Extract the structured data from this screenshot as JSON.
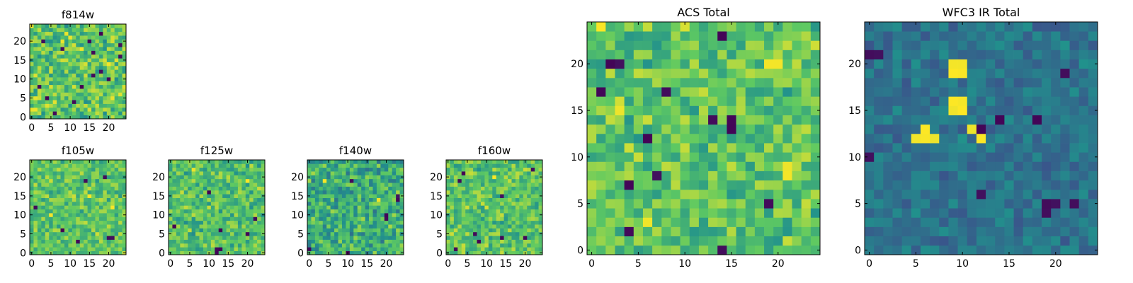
{
  "figure": {
    "background": "#ffffff"
  },
  "colormap": {
    "name": "viridis",
    "stops": [
      "#440154",
      "#3b528b",
      "#21918c",
      "#5ec962",
      "#fde725"
    ]
  },
  "chart_data": [
    {
      "id": "f814w",
      "type": "heatmap",
      "title": "f814w",
      "xticks": [
        "0",
        "5",
        "10",
        "15",
        "20"
      ],
      "yticks": [
        "0",
        "5",
        "10",
        "15",
        "20"
      ],
      "xlim": [
        0,
        24
      ],
      "ylim": [
        0,
        24
      ],
      "grid_size": 25,
      "intensity_range": [
        0,
        1
      ],
      "mean": 0.72,
      "spread": 0.2,
      "dark_pixels": [
        [
          3,
          20
        ],
        [
          18,
          22
        ],
        [
          15,
          20
        ],
        [
          23,
          19
        ],
        [
          8,
          18
        ],
        [
          16,
          17
        ],
        [
          18,
          12
        ],
        [
          16,
          11
        ],
        [
          20,
          10
        ],
        [
          2,
          8
        ],
        [
          4,
          5
        ],
        [
          11,
          4
        ],
        [
          23,
          16
        ],
        [
          13,
          8
        ],
        [
          6,
          1
        ]
      ],
      "bright_pixels": [
        [
          10,
          21
        ],
        [
          20,
          14
        ],
        [
          13,
          18
        ],
        [
          1,
          2
        ]
      ]
    },
    {
      "id": "f105w",
      "type": "heatmap",
      "title": "f105w",
      "xticks": [
        "0",
        "5",
        "10",
        "15",
        "20"
      ],
      "yticks": [
        "0",
        "5",
        "10",
        "15",
        "20"
      ],
      "xlim": [
        0,
        24
      ],
      "ylim": [
        0,
        24
      ],
      "grid_size": 25,
      "intensity_range": [
        0,
        1
      ],
      "mean": 0.72,
      "spread": 0.16,
      "dark_pixels": [
        [
          14,
          19
        ],
        [
          19,
          20
        ],
        [
          20,
          4
        ],
        [
          21,
          4
        ],
        [
          8,
          6
        ],
        [
          12,
          3
        ],
        [
          1,
          12
        ]
      ],
      "bright_pixels": [
        [
          15,
          15
        ],
        [
          21,
          12
        ],
        [
          5,
          10
        ]
      ]
    },
    {
      "id": "f125w",
      "type": "heatmap",
      "title": "f125w",
      "xticks": [
        "0",
        "5",
        "10",
        "15",
        "20"
      ],
      "yticks": [
        "0",
        "5",
        "10",
        "15",
        "20"
      ],
      "xlim": [
        0,
        24
      ],
      "ylim": [
        0,
        24
      ],
      "grid_size": 25,
      "intensity_range": [
        0,
        1
      ],
      "mean": 0.7,
      "spread": 0.17,
      "dark_pixels": [
        [
          12,
          1
        ],
        [
          12,
          0
        ],
        [
          13,
          1
        ],
        [
          1,
          7
        ],
        [
          13,
          6
        ],
        [
          20,
          5
        ],
        [
          22,
          9
        ],
        [
          10,
          16
        ]
      ],
      "bright_pixels": [
        [
          20,
          19
        ],
        [
          6,
          22
        ]
      ]
    },
    {
      "id": "f140w",
      "type": "heatmap",
      "title": "f140w",
      "xticks": [
        "0",
        "5",
        "10",
        "15",
        "20"
      ],
      "yticks": [
        "0",
        "5",
        "10",
        "15",
        "20"
      ],
      "xlim": [
        0,
        24
      ],
      "ylim": [
        0,
        24
      ],
      "grid_size": 25,
      "intensity_range": [
        0,
        1
      ],
      "mean": 0.62,
      "spread": 0.2,
      "dark_pixels": [
        [
          23,
          14
        ],
        [
          23,
          15
        ],
        [
          20,
          9
        ],
        [
          20,
          10
        ],
        [
          10,
          0
        ],
        [
          0,
          1
        ],
        [
          11,
          19
        ]
      ],
      "bright_pixels": [
        [
          18,
          14
        ],
        [
          4,
          19
        ]
      ]
    },
    {
      "id": "f160w",
      "type": "heatmap",
      "title": "f160w",
      "xticks": [
        "0",
        "5",
        "10",
        "15",
        "20"
      ],
      "yticks": [
        "0",
        "5",
        "10",
        "15",
        "20"
      ],
      "xlim": [
        0,
        24
      ],
      "ylim": [
        0,
        24
      ],
      "grid_size": 25,
      "intensity_range": [
        0,
        1
      ],
      "mean": 0.72,
      "spread": 0.17,
      "dark_pixels": [
        [
          4,
          21
        ],
        [
          3,
          19
        ],
        [
          14,
          15
        ],
        [
          7,
          5
        ],
        [
          8,
          3
        ],
        [
          14,
          4
        ],
        [
          20,
          4
        ],
        [
          2,
          1
        ],
        [
          22,
          22
        ]
      ],
      "bright_pixels": [
        [
          12,
          20
        ]
      ]
    },
    {
      "id": "acs-total",
      "type": "heatmap",
      "title": "ACS Total",
      "xticks": [
        "0",
        "5",
        "10",
        "15",
        "20"
      ],
      "yticks": [
        "0",
        "5",
        "10",
        "15",
        "20"
      ],
      "xlim": [
        0,
        24
      ],
      "ylim": [
        0,
        24
      ],
      "grid_size": 25,
      "intensity_range": [
        0,
        1
      ],
      "mean": 0.72,
      "spread": 0.17,
      "dark_pixels": [
        [
          3,
          20
        ],
        [
          2,
          20
        ],
        [
          1,
          17
        ],
        [
          8,
          17
        ],
        [
          6,
          12
        ],
        [
          15,
          13
        ],
        [
          15,
          14
        ],
        [
          13,
          14
        ],
        [
          7,
          8
        ],
        [
          4,
          7
        ],
        [
          4,
          2
        ],
        [
          14,
          0
        ],
        [
          19,
          5
        ],
        [
          14,
          23
        ]
      ],
      "bright_pixels": [
        [
          3,
          15
        ],
        [
          21,
          8
        ],
        [
          21,
          9
        ],
        [
          20,
          20
        ],
        [
          19,
          20
        ],
        [
          6,
          3
        ],
        [
          1,
          24
        ]
      ]
    },
    {
      "id": "wfc3-ir-total",
      "type": "heatmap",
      "title": "WFC3 IR Total",
      "xticks": [
        "0",
        "5",
        "10",
        "15",
        "20"
      ],
      "yticks": [
        "0",
        "5",
        "10",
        "15",
        "20"
      ],
      "xlim": [
        0,
        24
      ],
      "ylim": [
        0,
        24
      ],
      "grid_size": 25,
      "intensity_range": [
        0,
        1
      ],
      "mean": 0.38,
      "spread": 0.1,
      "dark_pixels": [
        [
          0,
          21
        ],
        [
          1,
          21
        ],
        [
          21,
          19
        ],
        [
          0,
          10
        ],
        [
          14,
          14
        ],
        [
          18,
          14
        ],
        [
          12,
          13
        ],
        [
          12,
          6
        ],
        [
          20,
          5
        ],
        [
          19,
          4
        ],
        [
          19,
          5
        ],
        [
          22,
          5
        ]
      ],
      "bright_pixels": [
        [
          9,
          20
        ],
        [
          10,
          20
        ],
        [
          9,
          19
        ],
        [
          10,
          19
        ],
        [
          9,
          16
        ],
        [
          9,
          15
        ],
        [
          10,
          16
        ],
        [
          10,
          15
        ],
        [
          6,
          13
        ],
        [
          6,
          12
        ],
        [
          7,
          12
        ],
        [
          11,
          13
        ],
        [
          12,
          12
        ],
        [
          5,
          12
        ]
      ]
    }
  ]
}
